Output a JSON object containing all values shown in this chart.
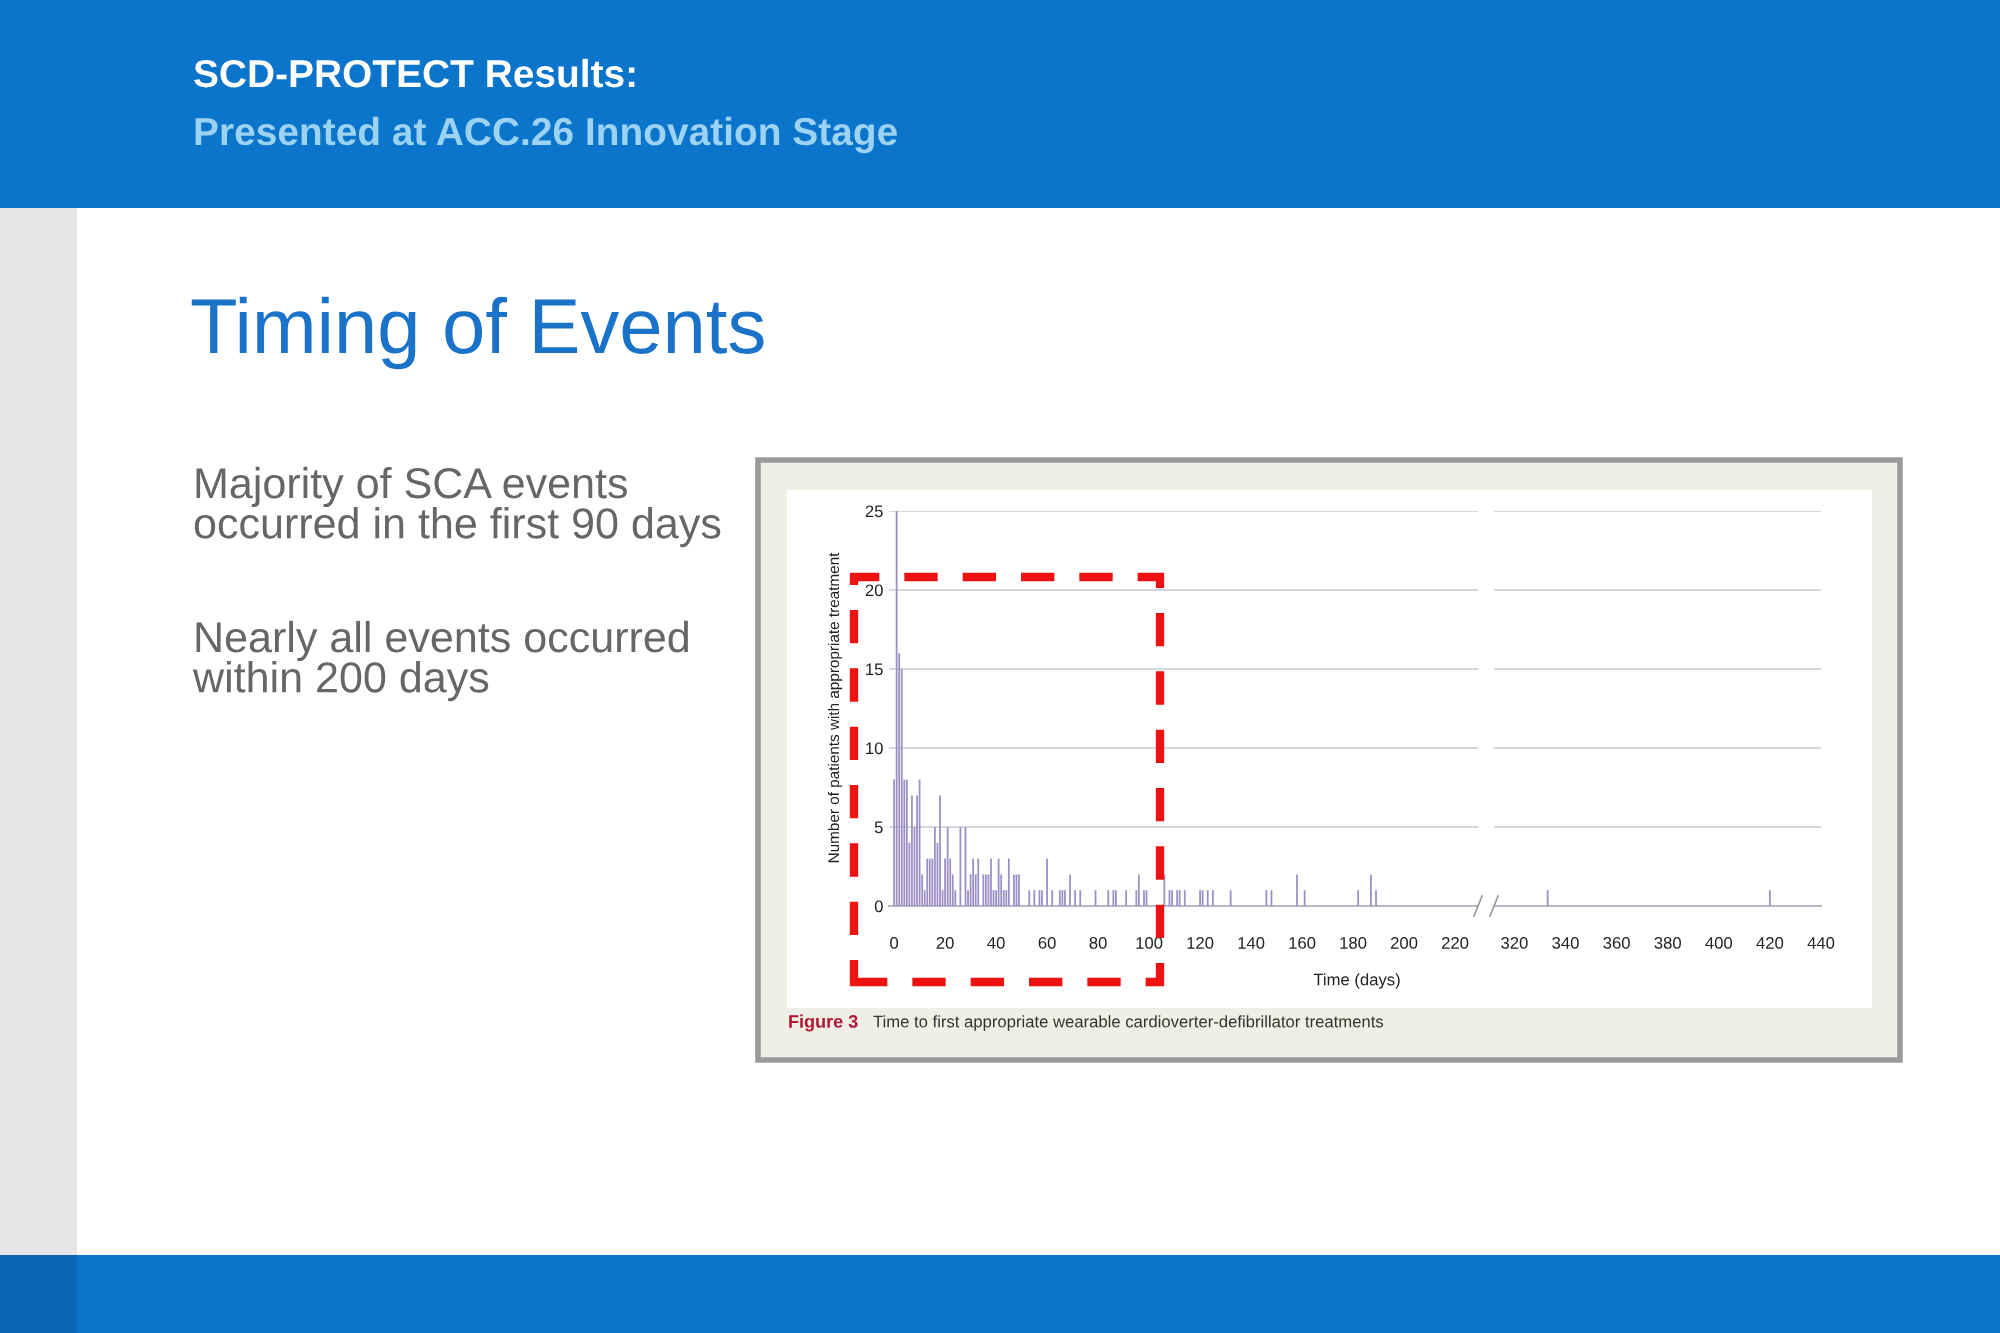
{
  "chart_data": [
    {
      "type": "bar",
      "title": "Timing of Events",
      "ylabel": "Number of patients with appropriate treatment",
      "xlabel": "Time (days)",
      "annotations": [
        "SCD-PROTECT Results:",
        "Presented at ACC.26 Innovation Stage",
        "Majority of SCA events\noccurred in the first 90 days",
        "Nearly all events occurred\nwithin 200 days",
        "Figure 3",
        "Time to first appropriate wearable cardioverter-defibrillator treatments"
      ],
      "x": [
        0,
        1,
        2,
        3,
        4,
        5,
        6,
        7,
        8,
        9,
        10,
        11,
        12,
        13,
        14,
        15,
        16,
        17,
        18,
        19,
        20,
        21,
        22,
        23,
        24,
        26,
        28,
        29,
        30,
        31,
        32,
        33,
        35,
        36,
        37,
        38,
        39,
        40,
        41,
        42,
        43,
        44,
        45,
        47,
        48,
        49,
        53,
        55,
        57,
        58,
        60,
        62,
        65,
        66,
        67,
        69,
        71,
        73,
        79,
        84,
        86,
        87,
        91,
        95,
        96,
        98,
        99,
        106,
        108,
        109,
        111,
        112,
        114,
        120,
        121,
        123,
        125,
        132,
        146,
        148,
        158,
        161,
        182,
        187,
        189
      ],
      "values": [
        8,
        25,
        16,
        15,
        8,
        8,
        4,
        7,
        5,
        7,
        8,
        2,
        1,
        3,
        3,
        3,
        5,
        4,
        7,
        1,
        3,
        5,
        3,
        2,
        1,
        5,
        5,
        1,
        2,
        3,
        2,
        3,
        2,
        2,
        2,
        3,
        1,
        1,
        3,
        2,
        1,
        1,
        3,
        2,
        2,
        2,
        1,
        1,
        1,
        1,
        3,
        1,
        1,
        1,
        1,
        2,
        1,
        1,
        1,
        1,
        1,
        1,
        1,
        1,
        2,
        1,
        1,
        2,
        1,
        1,
        1,
        1,
        1,
        1,
        1,
        1,
        1,
        1,
        1,
        1,
        2,
        1,
        1,
        2,
        1
      ],
      "color": "#9c8fc6",
      "xlim": [
        -2,
        229
      ],
      "xticks": [
        0,
        20,
        40,
        60,
        80,
        100,
        120,
        140,
        160,
        180,
        200,
        220
      ],
      "ylim": [
        0,
        25
      ],
      "yticks": [
        0,
        5,
        10,
        15,
        20,
        25
      ],
      "grid": "y"
    },
    {
      "type": "bar",
      "x": [
        333,
        420
      ],
      "values": [
        1,
        1
      ],
      "color": "#9c8fc6",
      "xlim": [
        312,
        440
      ],
      "xticks": [
        320,
        340,
        360,
        380,
        400,
        420,
        440
      ],
      "ylim": [
        0,
        25
      ],
      "yticks": [
        0,
        5,
        10,
        15,
        20,
        25
      ],
      "grid": "y",
      "tick_labels": "x"
    }
  ]
}
